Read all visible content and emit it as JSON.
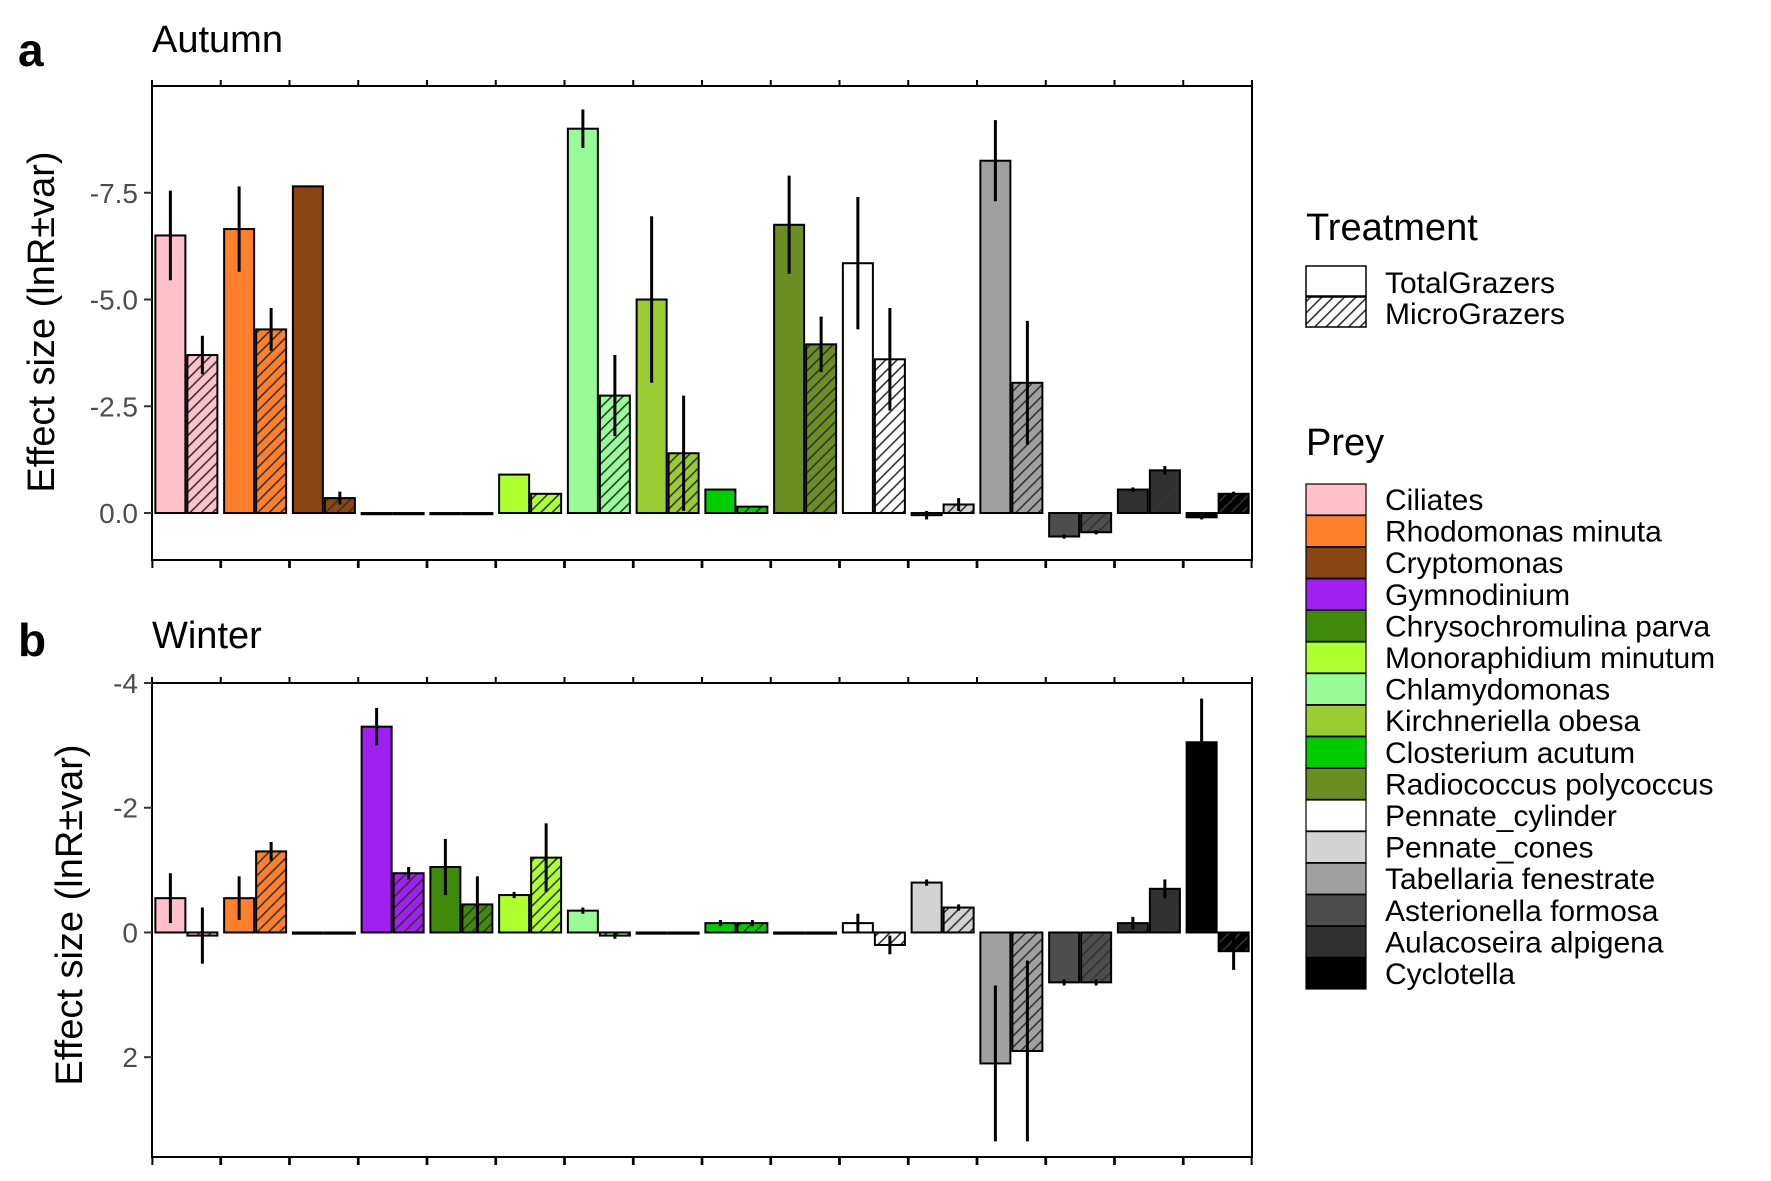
{
  "panel_letters": [
    "a",
    "b"
  ],
  "legend": {
    "treatment_title": "Treatment",
    "treatment_items": [
      "TotalGrazers",
      "MicroGrazers"
    ],
    "prey_title": "Prey"
  },
  "colors": {
    "Ciliates": "#ffc0cb",
    "Rhodomonas minuta": "#ff7f2a",
    "Cryptomonas": "#8b4513",
    "Gymnodinium": "#a020f0",
    "Chrysochromulina parva": "#3f8a0a",
    "Monoraphidium minutum": "#adff2f",
    "Chlamydomonas": "#98fb98",
    "Kirchneriella obesa": "#9acd32",
    "Closterium acutum": "#00cd00",
    "Radiococcus polycoccus": "#6b8e23",
    "Pennate_cylinder": "#ffffff",
    "Pennate_cones": "#d3d3d3",
    "Tabellaria fenestrate": "#a0a0a0",
    "Asterionella formosa": "#4d4d4d",
    "Aulacoseira alpigena": "#303030",
    "Cyclotella": "#000000"
  },
  "chart_data": [
    {
      "type": "bar",
      "title": "Autumn",
      "ylabel": "Effect size (lnR±var)",
      "y_reversed": true,
      "ylim": [
        1.1,
        -10.0
      ],
      "yticks": [
        0,
        -2.5,
        -5,
        -7.5
      ],
      "ytick_labels": [
        "0.0",
        "-2.5",
        "-5.0",
        "-7.5"
      ],
      "categories": [
        "Ciliates",
        "Rhodomonas minuta",
        "Cryptomonas",
        "Gymnodinium",
        "Chrysochromulina parva",
        "Monoraphidium minutum",
        "Chlamydomonas",
        "Kirchneriella obesa",
        "Closterium acutum",
        "Radiococcus polycoccus",
        "Pennate_cylinder",
        "Pennate_cones",
        "Tabellaria fenestrate",
        "Asterionella formosa",
        "Aulacoseira alpigena",
        "Cyclotella"
      ],
      "series": [
        {
          "name": "TotalGrazers",
          "values": [
            -6.5,
            -6.65,
            -7.65,
            0,
            0,
            -0.9,
            -9.0,
            -5.0,
            -0.55,
            -6.75,
            -5.85,
            0.05,
            -8.25,
            0.55,
            -0.55,
            0.1
          ],
          "errors": [
            1.05,
            1.0,
            0,
            0,
            0,
            0,
            0.45,
            1.95,
            0,
            1.15,
            1.55,
            0.1,
            0.95,
            0.05,
            0.05,
            0.05
          ]
        },
        {
          "name": "MicroGrazers",
          "values": [
            -3.7,
            -4.3,
            -0.35,
            0,
            0,
            -0.45,
            -2.75,
            -1.4,
            -0.15,
            -3.95,
            -3.6,
            -0.2,
            -3.05,
            0.45,
            -1.0,
            -0.45
          ],
          "errors": [
            0.45,
            0.5,
            0.15,
            0,
            0,
            0,
            0.95,
            1.35,
            0,
            0.65,
            1.2,
            0.15,
            1.45,
            0.05,
            0.1,
            0.05
          ]
        }
      ]
    },
    {
      "type": "bar",
      "title": "Winter",
      "ylabel": "Effect size (lnR±var)",
      "y_reversed": true,
      "ylim": [
        3.6,
        -4.0
      ],
      "yticks": [
        2,
        0,
        -2,
        -4
      ],
      "ytick_labels": [
        "2",
        "0",
        "-2",
        "-4"
      ],
      "categories": [
        "Ciliates",
        "Rhodomonas minuta",
        "Cryptomonas",
        "Gymnodinium",
        "Chrysochromulina parva",
        "Monoraphidium minutum",
        "Chlamydomonas",
        "Kirchneriella obesa",
        "Closterium acutum",
        "Radiococcus polycoccus",
        "Pennate_cylinder",
        "Pennate_cones",
        "Tabellaria fenestrate",
        "Asterionella formosa",
        "Aulacoseira alpigena",
        "Cyclotella"
      ],
      "series": [
        {
          "name": "TotalGrazers",
          "values": [
            -0.55,
            -0.55,
            0,
            -3.3,
            -1.05,
            -0.6,
            -0.35,
            0,
            -0.15,
            0,
            -0.15,
            -0.8,
            2.1,
            0.8,
            -0.15,
            -3.05
          ],
          "errors": [
            0.4,
            0.35,
            0,
            0.3,
            0.45,
            0.05,
            0.05,
            0,
            0.05,
            0,
            0.15,
            0.05,
            1.25,
            0.05,
            0.1,
            0.7
          ]
        },
        {
          "name": "MicroGrazers",
          "values": [
            0.05,
            -1.3,
            0,
            -0.95,
            -0.45,
            -1.2,
            0.05,
            0,
            -0.15,
            0,
            0.2,
            -0.4,
            1.9,
            0.8,
            -0.7,
            0.3
          ],
          "errors": [
            0.45,
            0.15,
            0,
            0.1,
            0.45,
            0.55,
            0.05,
            0,
            0.05,
            0,
            0.15,
            0.05,
            1.45,
            0.05,
            0.15,
            0.3
          ]
        }
      ]
    }
  ]
}
